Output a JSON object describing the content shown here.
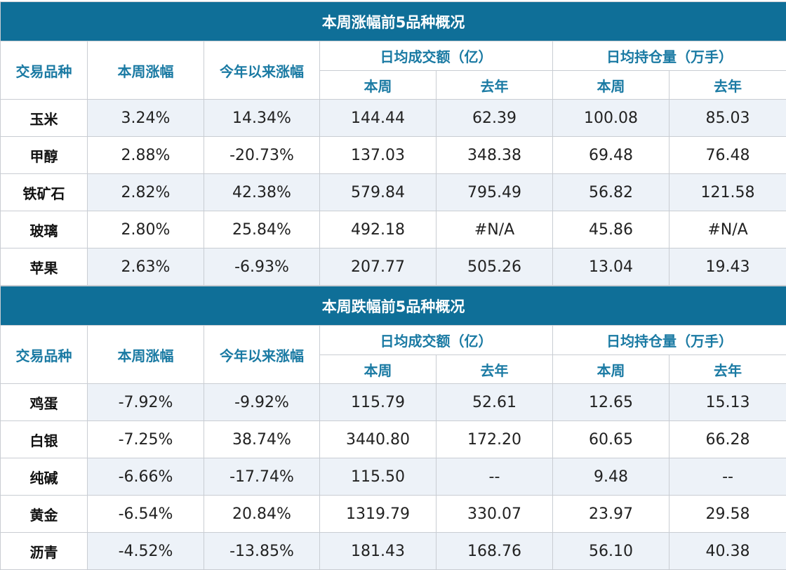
{
  "headers": {
    "variety": "交易品种",
    "weekly_change": "本周涨幅",
    "ytd_change": "今年以来涨幅",
    "avg_turnover": "日均成交额（亿）",
    "avg_open_interest": "日均持仓量（万手）",
    "this_week": "本周",
    "last_year": "去年"
  },
  "tables": [
    {
      "title": "本周涨幅前5品种概况",
      "rows": [
        {
          "name": "玉米",
          "week": "3.24%",
          "ytd": "14.34%",
          "turn_week": "144.44",
          "turn_last": "62.39",
          "oi_week": "100.08",
          "oi_last": "85.03"
        },
        {
          "name": "甲醇",
          "week": "2.88%",
          "ytd": "-20.73%",
          "turn_week": "137.03",
          "turn_last": "348.38",
          "oi_week": "69.48",
          "oi_last": "76.48"
        },
        {
          "name": "铁矿石",
          "week": "2.82%",
          "ytd": "42.38%",
          "turn_week": "579.84",
          "turn_last": "795.49",
          "oi_week": "56.82",
          "oi_last": "121.58"
        },
        {
          "name": "玻璃",
          "week": "2.80%",
          "ytd": "25.84%",
          "turn_week": "492.18",
          "turn_last": "#N/A",
          "oi_week": "45.86",
          "oi_last": "#N/A"
        },
        {
          "name": "苹果",
          "week": "2.63%",
          "ytd": "-6.93%",
          "turn_week": "207.77",
          "turn_last": "505.26",
          "oi_week": "13.04",
          "oi_last": "19.43"
        }
      ]
    },
    {
      "title": "本周跌幅前5品种概况",
      "rows": [
        {
          "name": "鸡蛋",
          "week": "-7.92%",
          "ytd": "-9.92%",
          "turn_week": "115.79",
          "turn_last": "52.61",
          "oi_week": "12.65",
          "oi_last": "15.13"
        },
        {
          "name": "白银",
          "week": "-7.25%",
          "ytd": "38.74%",
          "turn_week": "3440.80",
          "turn_last": "172.20",
          "oi_week": "60.65",
          "oi_last": "66.28"
        },
        {
          "name": "纯碱",
          "week": "-6.66%",
          "ytd": "-17.74%",
          "turn_week": "115.50",
          "turn_last": "--",
          "oi_week": "9.48",
          "oi_last": "--"
        },
        {
          "name": "黄金",
          "week": "-6.54%",
          "ytd": "20.84%",
          "turn_week": "1319.79",
          "turn_last": "330.07",
          "oi_week": "23.97",
          "oi_last": "29.58"
        },
        {
          "name": "沥青",
          "week": "-4.52%",
          "ytd": "-13.85%",
          "turn_week": "181.43",
          "turn_last": "168.76",
          "oi_week": "56.10",
          "oi_last": "40.38"
        }
      ]
    }
  ]
}
